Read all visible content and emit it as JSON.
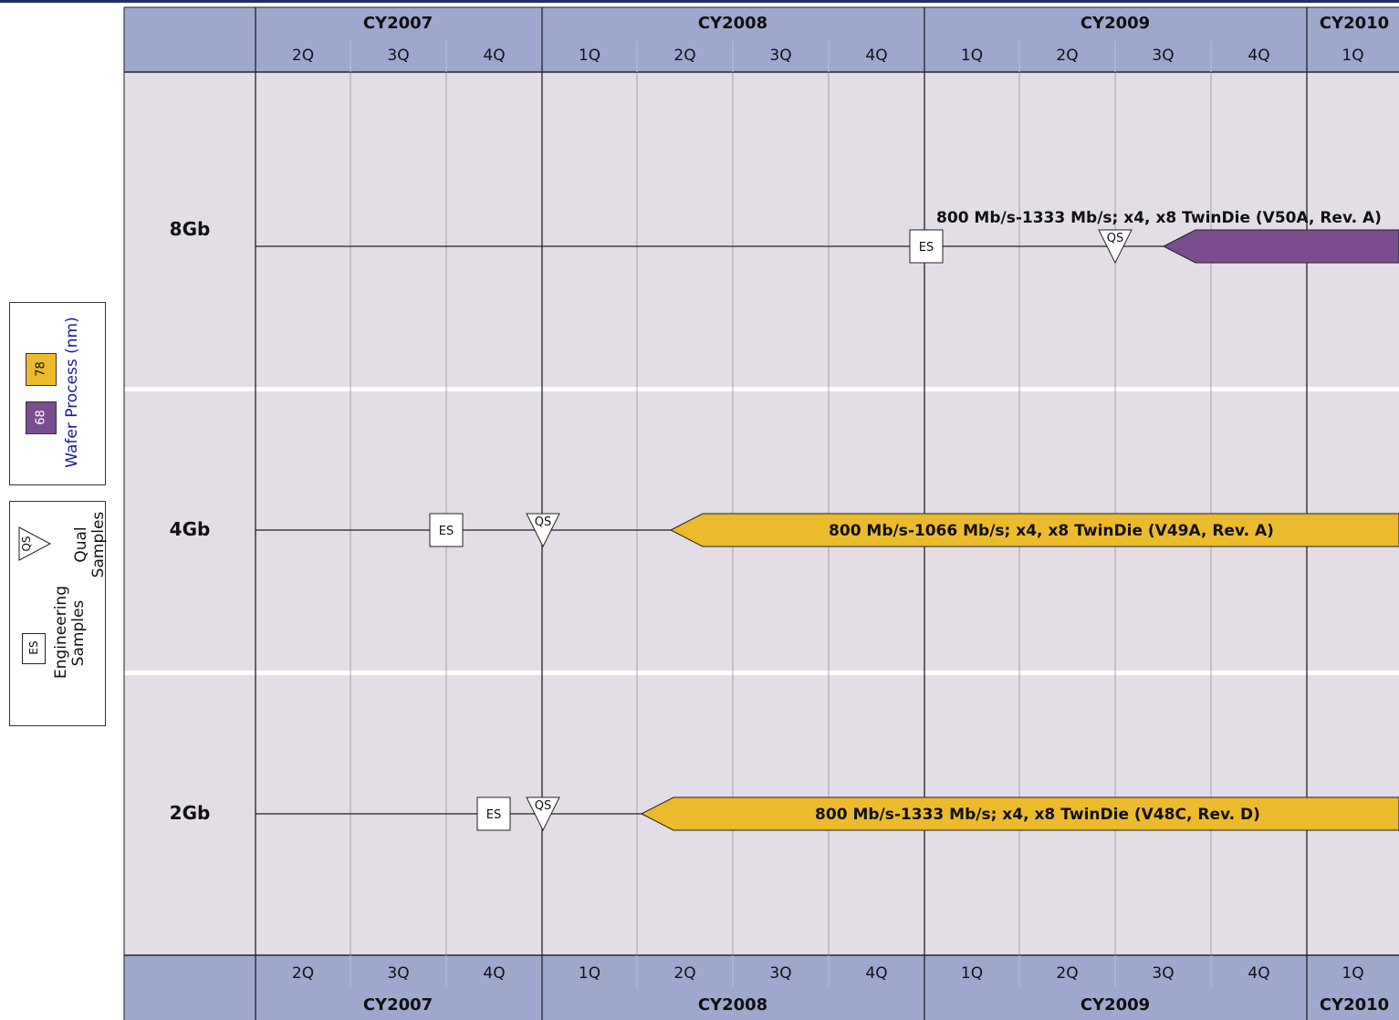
{
  "header": {
    "years": [
      "CY2007",
      "CY2008",
      "CY2009",
      "CY2010"
    ],
    "quarters": [
      "2Q",
      "3Q",
      "4Q",
      "1Q",
      "2Q",
      "3Q",
      "4Q",
      "1Q",
      "2Q",
      "3Q",
      "4Q",
      "1Q"
    ]
  },
  "rows": [
    {
      "density": "8Gb",
      "product_label": "800 Mb/s-1333 Mb/s; x4, x8 TwinDie (V50A, Rev. A)",
      "process_nm": "68",
      "es_marker": "ES",
      "qs_marker": "QS",
      "es_quarter": "1Q CY2009",
      "qs_quarter": "3Q CY2009",
      "production_start": "4Q CY2009"
    },
    {
      "density": "4Gb",
      "product_label": "800 Mb/s-1066 Mb/s; x4, x8 TwinDie (V49A, Rev. A)",
      "process_nm": "78",
      "es_marker": "ES",
      "qs_marker": "QS",
      "es_quarter": "4Q CY2007",
      "qs_quarter": "1Q CY2008",
      "production_start": "2Q CY2008"
    },
    {
      "density": "2Gb",
      "product_label": "800 Mb/s-1333 Mb/s; x4, x8 TwinDie (V48C, Rev. D)",
      "process_nm": "78",
      "es_marker": "ES",
      "qs_marker": "QS",
      "es_quarter": "4Q CY2007",
      "qs_quarter": "1Q CY2008",
      "production_start": "2Q CY2008"
    }
  ],
  "legend": {
    "wafer_process_title": "Wafer Process (nm)",
    "process_68": "68",
    "process_78": "78",
    "engineering_samples": "Engineering Samples",
    "qual_samples": "Qual Samples",
    "es_icon_text": "ES",
    "qs_icon_text": "QS"
  },
  "colors": {
    "header_bg": "#9ea8cd",
    "body_bg": "#e3dde5",
    "process_68": "#7a4e8e",
    "process_78": "#ecbb2d",
    "legend_title": "#1c1c9c"
  }
}
